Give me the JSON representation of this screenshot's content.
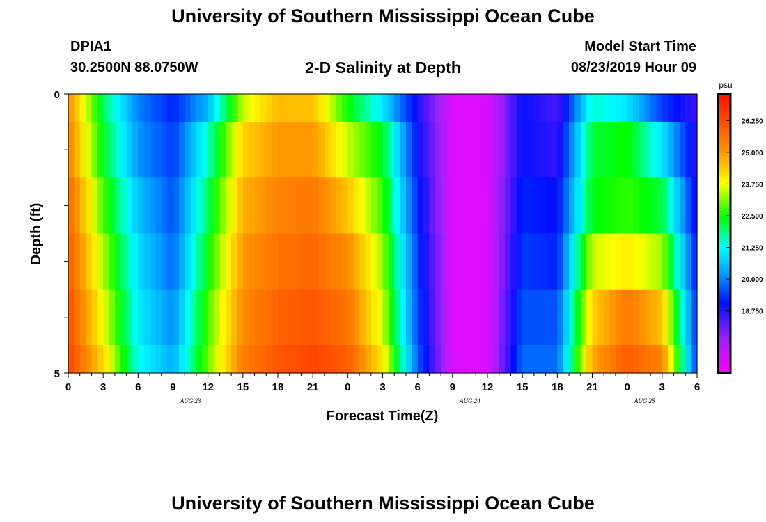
{
  "header": {
    "title": "University of Southern Mississippi Ocean Cube",
    "station_id": "DPIA1",
    "station_coords": "30.2500N 88.0750W",
    "chart_title": "2-D Salinity at Depth",
    "model_start_label": "Model Start Time",
    "model_start_value": "08/23/2019 Hour 09"
  },
  "footer": {
    "title": "University of Southern Mississippi Ocean Cube"
  },
  "chart_data": {
    "type": "heatmap",
    "title": "2-D Salinity at Depth",
    "xlabel": "Forecast Time(Z)",
    "ylabel": "Depth (ft)",
    "x_tick_labels": [
      "0",
      "3",
      "6",
      "9",
      "12",
      "15",
      "18",
      "21",
      "0",
      "3",
      "6",
      "9",
      "12",
      "15",
      "18",
      "21",
      "0",
      "3",
      "6"
    ],
    "y_tick_labels": [
      "0",
      "5"
    ],
    "y_range": [
      0,
      5
    ],
    "date_labels": [
      {
        "label": "AUG 23",
        "tick_index": 3.5
      },
      {
        "label": "AUG 24",
        "tick_index": 11.5
      },
      {
        "label": "AUG 25",
        "tick_index": 16.5
      }
    ],
    "colorbar": {
      "unit": "psu",
      "min": 16.3,
      "max": 27.3,
      "ticks": [
        18.75,
        20.0,
        21.25,
        22.5,
        23.75,
        25.0,
        26.25
      ],
      "tick_labels": [
        "18.750",
        "20.000",
        "21.250",
        "22.500",
        "23.750",
        "25.000",
        "26.250"
      ]
    },
    "hours": [
      0,
      3,
      6,
      9,
      12,
      15,
      18,
      21,
      24,
      27,
      30,
      33,
      36,
      39,
      42,
      45,
      48,
      51,
      54
    ],
    "depth_layers": [
      "0-0.5",
      "0.5-1.5",
      "1.5-2.5",
      "2.5-3.5",
      "3.5-4.5",
      "4.5-5"
    ],
    "salinity": [
      [
        25.2,
        22.0,
        20.0,
        19.2,
        20.5,
        23.5,
        24.6,
        24.5,
        22.5,
        21.0,
        18.8,
        16.8,
        16.8,
        19.0,
        18.4,
        21.5,
        21.0,
        19.4,
        18.5
      ],
      [
        25.4,
        22.3,
        20.2,
        19.4,
        21.5,
        24.3,
        25.0,
        25.0,
        23.5,
        22.3,
        19.0,
        16.8,
        16.8,
        19.0,
        18.6,
        22.2,
        22.5,
        21.0,
        18.6
      ],
      [
        25.8,
        22.8,
        20.6,
        19.6,
        22.0,
        24.7,
        25.3,
        25.5,
        24.5,
        22.7,
        19.2,
        16.8,
        16.8,
        19.2,
        19.0,
        22.4,
        22.7,
        22.2,
        18.8
      ],
      [
        26.0,
        23.3,
        20.9,
        19.8,
        22.4,
        25.0,
        25.6,
        25.8,
        25.2,
        23.2,
        19.4,
        16.8,
        16.8,
        19.4,
        19.2,
        23.5,
        24.0,
        23.3,
        19.0
      ],
      [
        26.2,
        23.7,
        21.1,
        20.1,
        22.8,
        25.2,
        25.9,
        26.1,
        25.6,
        23.5,
        19.5,
        16.8,
        16.8,
        19.6,
        19.6,
        24.3,
        25.5,
        24.5,
        19.2
      ],
      [
        26.4,
        24.2,
        21.3,
        20.4,
        23.0,
        25.4,
        26.1,
        26.4,
        26.0,
        24.0,
        19.7,
        16.8,
        16.8,
        19.8,
        19.8,
        24.8,
        26.0,
        25.3,
        19.3
      ]
    ]
  }
}
